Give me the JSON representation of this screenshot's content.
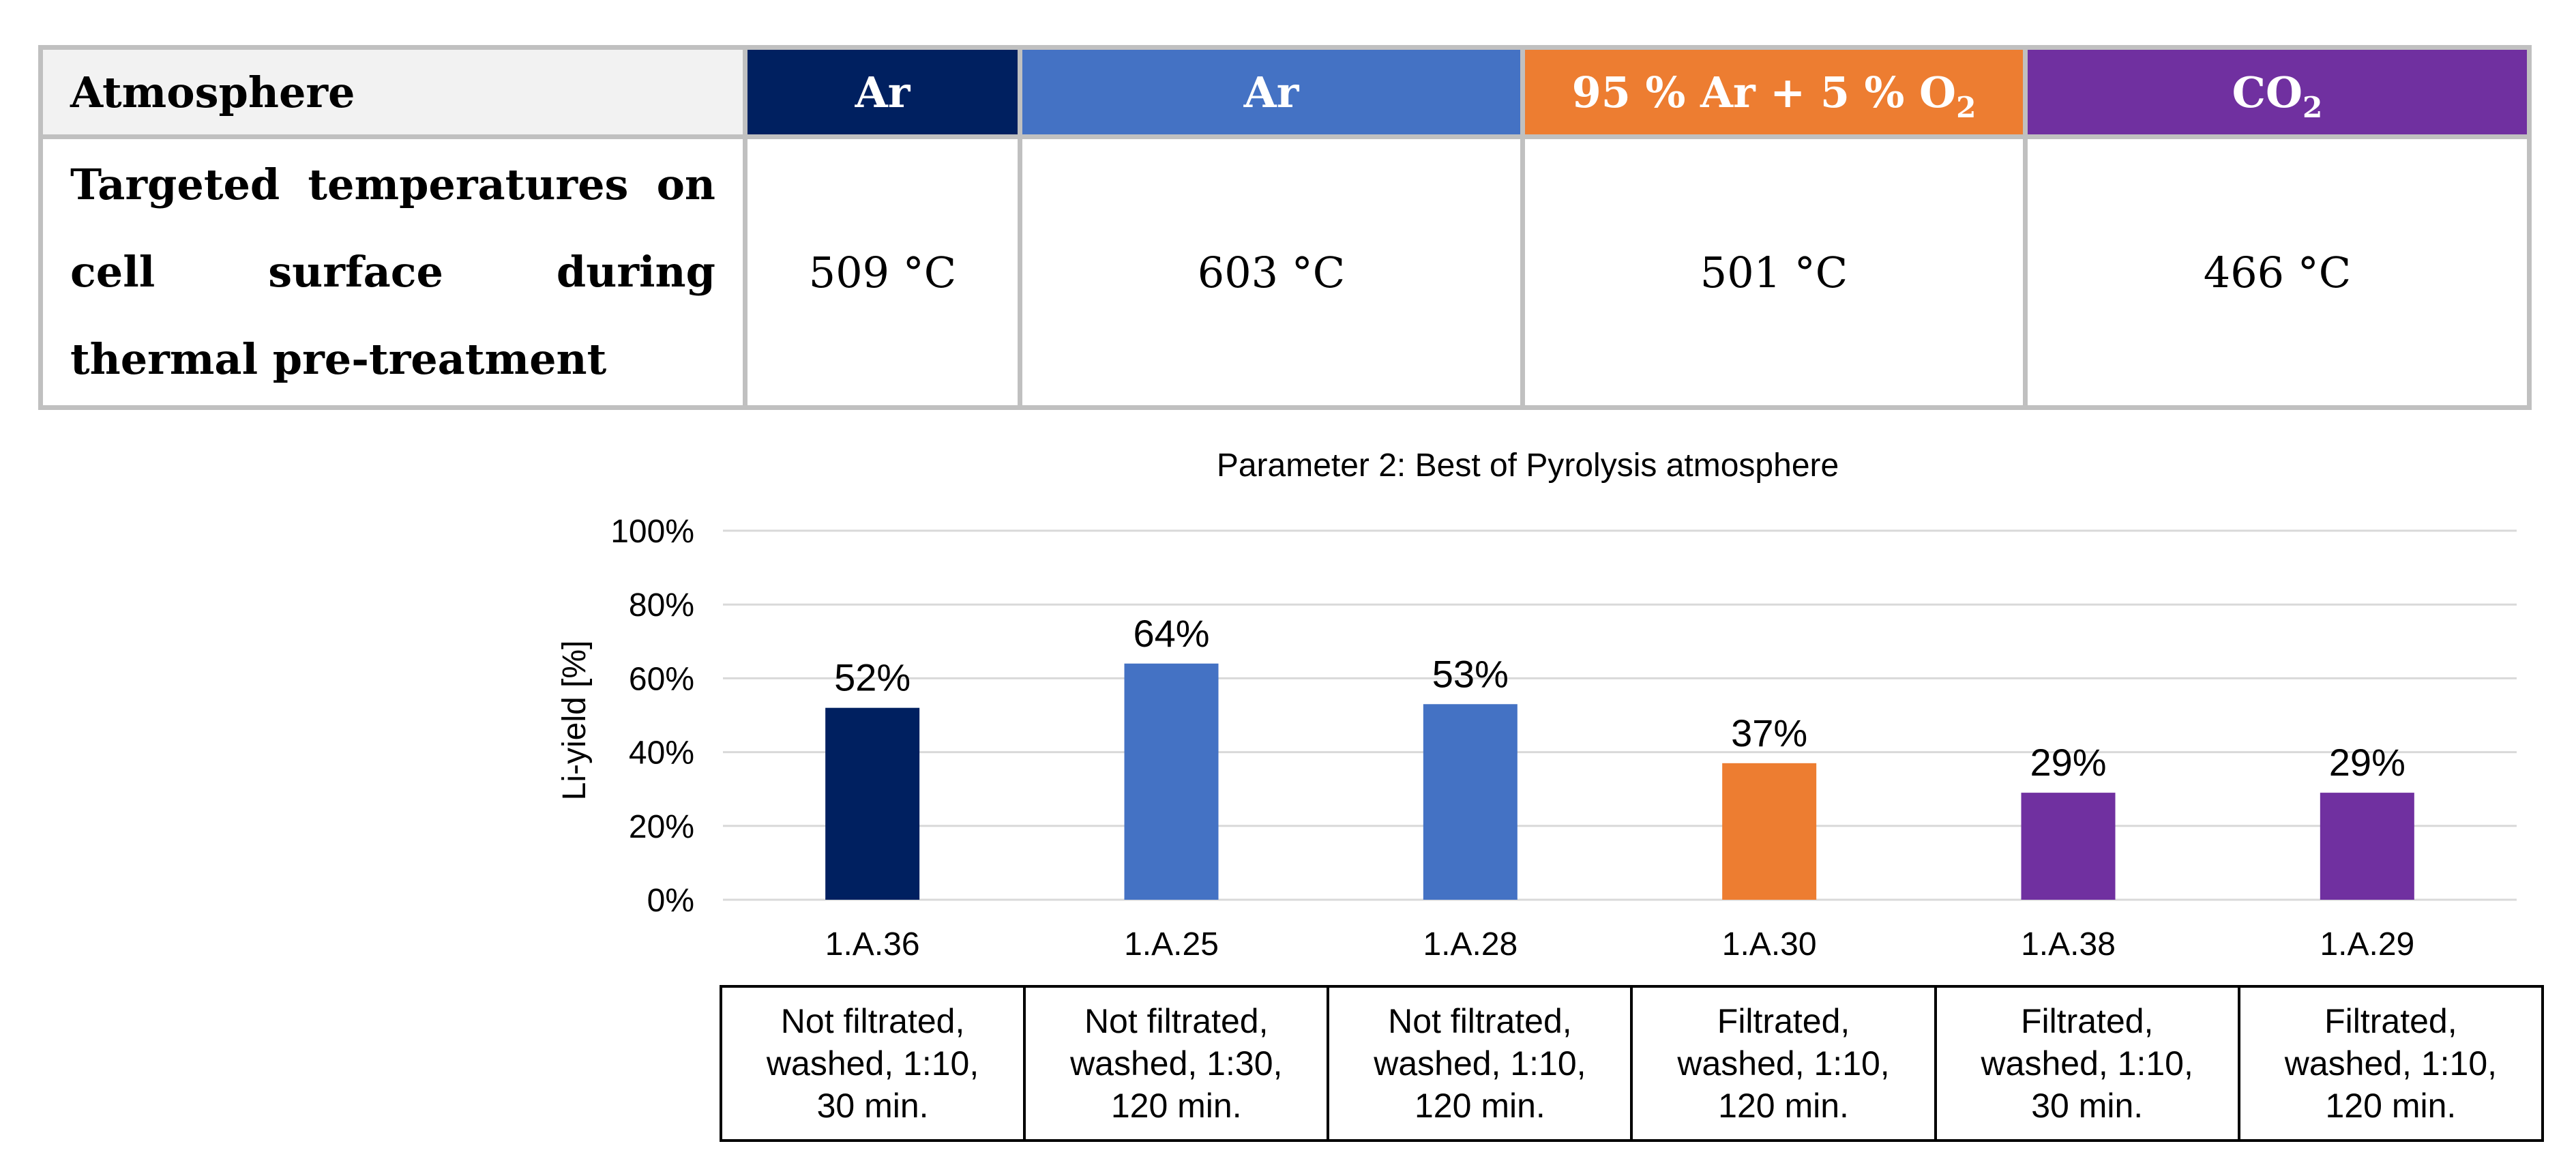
{
  "table": {
    "header_label": "Atmosphere",
    "body_label": "Targeted temperatures on cell surface during thermal pre-treatment",
    "columns": [
      {
        "atmosphere": "Ar",
        "atmosphere_sub": "",
        "atmosphere_suffix": "",
        "temperature": "509 °C",
        "color": "#002060"
      },
      {
        "atmosphere": "Ar",
        "atmosphere_sub": "",
        "atmosphere_suffix": "",
        "temperature": "603 °C",
        "color": "#4472c4"
      },
      {
        "atmosphere": "95 % Ar + 5 % O",
        "atmosphere_sub": "2",
        "atmosphere_suffix": "",
        "temperature": "501 °C",
        "color": "#ed7d31"
      },
      {
        "atmosphere": "CO",
        "atmosphere_sub": "2",
        "atmosphere_suffix": "",
        "temperature": "466 °C",
        "color": "#7030a0"
      }
    ]
  },
  "chart_data": {
    "type": "bar",
    "title": "Parameter 2: Best of Pyrolysis atmosphere",
    "xlabel": "",
    "ylabel": "Li-yield [%]",
    "ylim": [
      0,
      100
    ],
    "yticks": [
      0,
      20,
      40,
      60,
      80,
      100
    ],
    "ytick_labels": [
      "0%",
      "20%",
      "40%",
      "60%",
      "80%",
      "100%"
    ],
    "grid": true,
    "categories": [
      "1.A.36",
      "1.A.25",
      "1.A.28",
      "1.A.30",
      "1.A.38",
      "1.A.29"
    ],
    "values": [
      52,
      64,
      53,
      37,
      29,
      29
    ],
    "value_labels": [
      "52%",
      "64%",
      "53%",
      "37%",
      "29%",
      "29%"
    ],
    "colors": [
      "#002060",
      "#4472c4",
      "#4472c4",
      "#ed7d31",
      "#7030a0",
      "#7030a0"
    ]
  },
  "conditions": [
    "Not filtrated,\nwashed, 1:10,\n30 min.",
    "Not filtrated,\nwashed, 1:30,\n120 min.",
    "Not filtrated,\nwashed, 1:10,\n120 min.",
    "Filtrated,\nwashed, 1:10,\n120 min.",
    "Filtrated,\nwashed, 1:10,\n30 min.",
    "Filtrated,\nwashed, 1:10,\n120 min."
  ]
}
